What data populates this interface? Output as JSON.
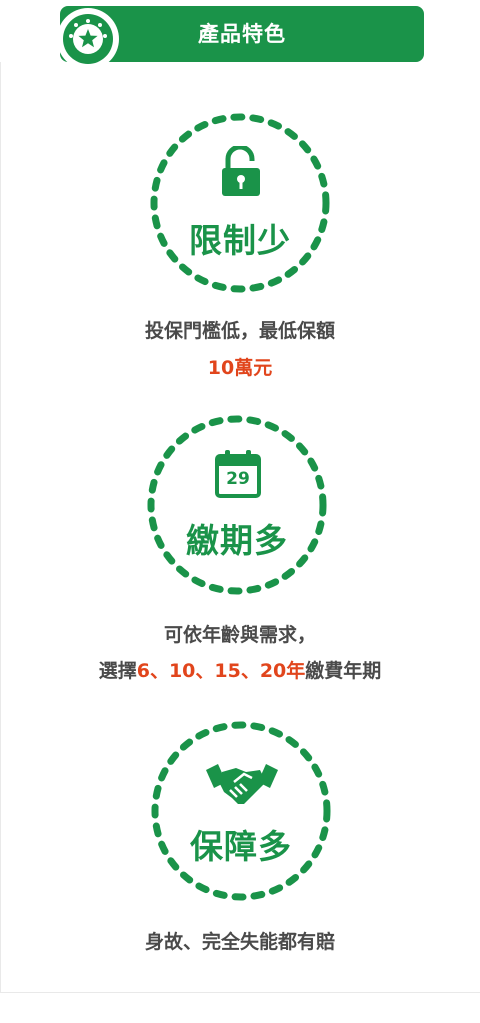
{
  "header": {
    "title": "產品特色",
    "badge_icon": "star-badge-icon"
  },
  "colors": {
    "brand_green": "#1a9349",
    "accent_orange": "#e1451c",
    "text_gray": "#4a4a4a"
  },
  "features": [
    {
      "icon": "unlock-icon",
      "title": "限制少",
      "desc_line1": "投保門檻低，最低保額",
      "desc_line2_highlight": "10萬元"
    },
    {
      "icon": "calendar-icon",
      "icon_number": "29",
      "title": "繳期多",
      "desc_line1": "可依年齡與需求，",
      "desc_line2_prefix": "選擇",
      "desc_line2_highlight": "6、10、15、20年",
      "desc_line2_suffix": "繳費年期"
    },
    {
      "icon": "handshake-icon",
      "title": "保障多",
      "desc_line1": "身故、完全失能都有賠"
    }
  ]
}
